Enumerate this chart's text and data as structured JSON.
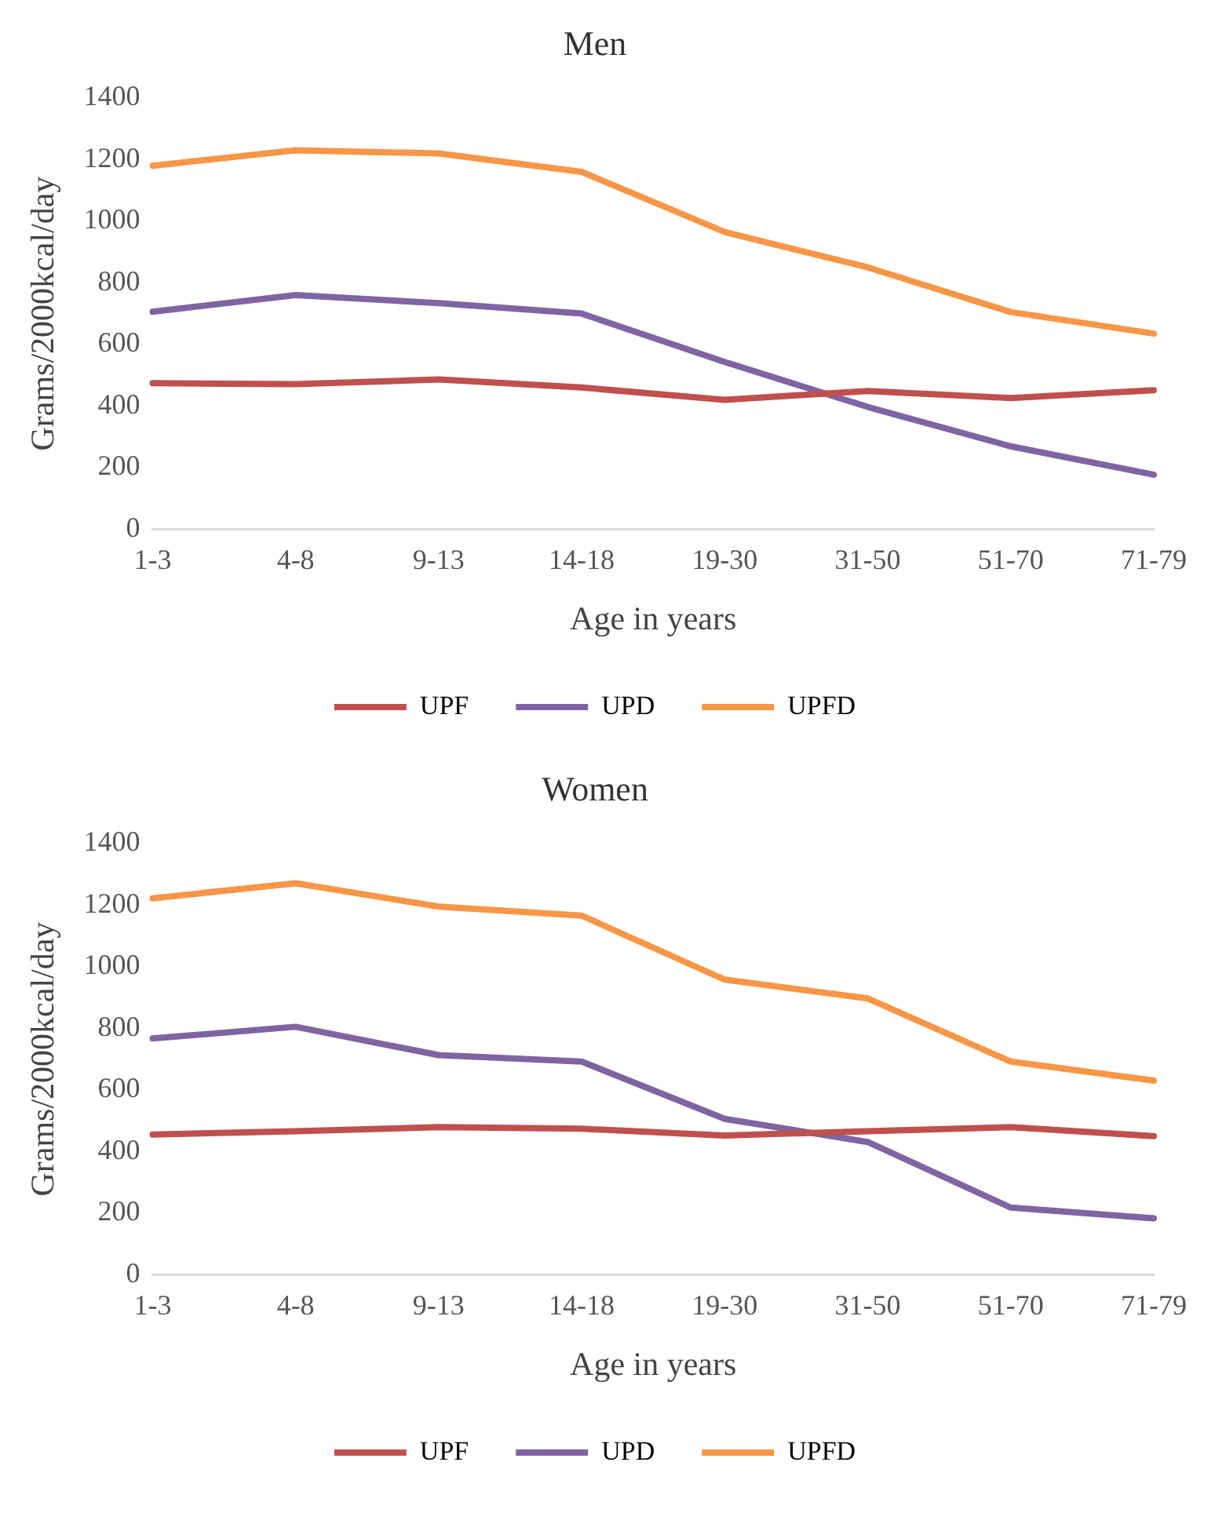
{
  "chart_data": [
    {
      "type": "line",
      "title": "Men",
      "xlabel": "Age in years",
      "ylabel": "Grams/2000kcal/day",
      "categories": [
        "1-3",
        "4-8",
        "9-13",
        "14-18",
        "19-30",
        "31-50",
        "51-70",
        "71-79"
      ],
      "series": [
        {
          "name": "UPF",
          "color": "#c0504d",
          "values": [
            474,
            471,
            486,
            460,
            420,
            449,
            426,
            451
          ]
        },
        {
          "name": "UPD",
          "color": "#8064a2",
          "values": [
            706,
            760,
            734,
            700,
            543,
            397,
            269,
            177
          ]
        },
        {
          "name": "UPFD",
          "color": "#f79646",
          "values": [
            1180,
            1230,
            1220,
            1160,
            965,
            850,
            705,
            635
          ]
        }
      ],
      "ylim": [
        0,
        1400
      ],
      "yticks": [
        0,
        200,
        400,
        600,
        800,
        1000,
        1200,
        1400
      ],
      "grid": false,
      "legend": "bottom",
      "marker": "none"
    },
    {
      "type": "line",
      "title": "Women",
      "xlabel": "Age in years",
      "ylabel": "Grams/2000kcal/day",
      "categories": [
        "1-3",
        "4-8",
        "9-13",
        "14-18",
        "19-30",
        "31-50",
        "51-70",
        "71-79"
      ],
      "series": [
        {
          "name": "UPF",
          "color": "#c0504d",
          "values": [
            455,
            466,
            479,
            474,
            452,
            466,
            479,
            450
          ]
        },
        {
          "name": "UPD",
          "color": "#8064a2",
          "values": [
            767,
            805,
            713,
            692,
            506,
            431,
            218,
            183
          ]
        },
        {
          "name": "UPFD",
          "color": "#f79646",
          "values": [
            1222,
            1271,
            1195,
            1166,
            958,
            897,
            692,
            630
          ]
        }
      ],
      "ylim": [
        0,
        1400
      ],
      "yticks": [
        0,
        200,
        400,
        600,
        800,
        1000,
        1200,
        1400
      ],
      "grid": false,
      "legend": "bottom",
      "marker": "none"
    }
  ]
}
